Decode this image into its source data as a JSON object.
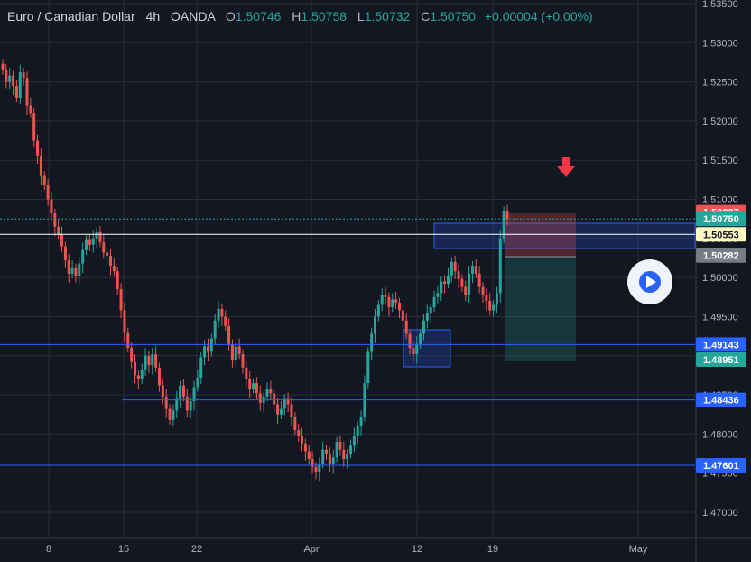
{
  "legend": {
    "symbol": "Euro / Canadian Dollar",
    "interval": "4h",
    "source": "OANDA",
    "open_label": "O",
    "open": "1.50746",
    "high_label": "H",
    "high": "1.50758",
    "low_label": "L",
    "low": "1.50732",
    "close_label": "C",
    "close": "1.50750",
    "change": "+0.00004 (+0.00%)"
  },
  "colors": {
    "background": "#131722",
    "up": "#26a69a",
    "down": "#ef5350",
    "grid": "#2a2e39",
    "level_line": "#2962ff",
    "current_price_line": "#ffffff",
    "arrow": "#f23645"
  },
  "icons": {
    "play": "play-icon",
    "arrow": "arrow-down-icon"
  },
  "chart_data": {
    "type": "candlestick",
    "symbol": "EURCAD",
    "interval": "4h",
    "ylim": [
      1.465,
      1.536
    ],
    "y_ticks": [
      "1.53500",
      "1.53000",
      "1.52500",
      "1.52000",
      "1.51500",
      "1.51000",
      "1.50500",
      "1.50000",
      "1.49500",
      "1.49000",
      "1.48500",
      "1.48000",
      "1.47500",
      "1.47000"
    ],
    "x_ticks": [
      "8",
      "15",
      "22",
      "Apr",
      "12",
      "19",
      "May"
    ],
    "price_tags": [
      {
        "value": "1.50837",
        "color": "#ef5350",
        "text_color": "#ffffff"
      },
      {
        "value": "1.50750",
        "color": "#26a69a",
        "text_color": "#ffffff"
      },
      {
        "value": "1.50553",
        "color": "#fff9c4",
        "text_color": "#131722"
      },
      {
        "value": "1.50282",
        "color": "#787b86",
        "text_color": "#ffffff"
      },
      {
        "value": "1.49143",
        "color": "#2962ff",
        "text_color": "#ffffff"
      },
      {
        "value": "1.48951",
        "color": "#26a69a",
        "text_color": "#ffffff"
      },
      {
        "value": "1.48436",
        "color": "#2962ff",
        "text_color": "#ffffff"
      },
      {
        "value": "1.47601",
        "color": "#2962ff",
        "text_color": "#ffffff"
      }
    ],
    "horizontal_levels": [
      1.50553,
      1.49143,
      1.48436,
      1.47601
    ],
    "closes": [
      1.5265,
      1.525,
      1.5258,
      1.5245,
      1.523,
      1.5262,
      1.5255,
      1.522,
      1.521,
      1.5175,
      1.5155,
      1.513,
      1.5118,
      1.51,
      1.5082,
      1.5065,
      1.5055,
      1.504,
      1.5022,
      1.5005,
      1.5012,
      1.5002,
      1.5018,
      1.5035,
      1.5048,
      1.5042,
      1.505,
      1.5058,
      1.5045,
      1.5032,
      1.5028,
      1.5015,
      1.5008,
      1.4985,
      1.4958,
      1.493,
      1.491,
      1.4892,
      1.4875,
      1.487,
      1.4882,
      1.49,
      1.4888,
      1.4902,
      1.4885,
      1.4862,
      1.4848,
      1.4832,
      1.4818,
      1.483,
      1.4845,
      1.4862,
      1.4848,
      1.483,
      1.4842,
      1.486,
      1.4872,
      1.4898,
      1.4912,
      1.4905,
      1.4922,
      1.4945,
      1.496,
      1.495,
      1.4938,
      1.4915,
      1.4895,
      1.4912,
      1.4902,
      1.4885,
      1.487,
      1.4858,
      1.4865,
      1.4852,
      1.484,
      1.4848,
      1.4858,
      1.4852,
      1.4838,
      1.4825,
      1.4832,
      1.4845,
      1.4838,
      1.4822,
      1.4805,
      1.4798,
      1.4788,
      1.4778,
      1.4768,
      1.4758,
      1.4752,
      1.4762,
      1.478,
      1.4775,
      1.4762,
      1.477,
      1.479,
      1.478,
      1.4768,
      1.4775,
      1.4785,
      1.4798,
      1.481,
      1.4822,
      1.4865,
      1.4905,
      1.4928,
      1.495,
      1.4965,
      1.4978,
      1.4975,
      1.4962,
      1.4972,
      1.4968,
      1.4958,
      1.4945,
      1.4928,
      1.491,
      1.4902,
      1.4915,
      1.4928,
      1.4945,
      1.4955,
      1.4962,
      1.4975,
      1.498,
      1.4995,
      1.4992,
      1.5002,
      1.502,
      1.5008,
      1.4998,
      1.4988,
      1.4978,
      1.5005,
      1.5015,
      1.5005,
      1.4988,
      1.4978,
      1.497,
      1.4958,
      1.4965,
      1.498,
      1.505,
      1.5085,
      1.5075
    ]
  }
}
